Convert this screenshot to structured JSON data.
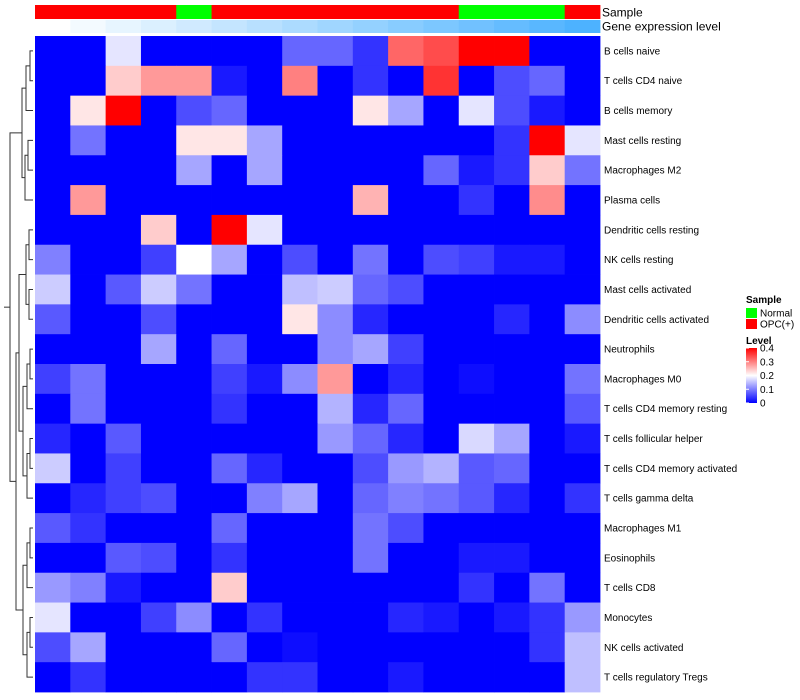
{
  "chart_data": {
    "type": "heatmap",
    "title": "",
    "annotation_tracks": [
      {
        "name": "Sample",
        "values": [
          "OPC(+)",
          "OPC(+)",
          "OPC(+)",
          "OPC(+)",
          "Normal",
          "OPC(+)",
          "OPC(+)",
          "OPC(+)",
          "OPC(+)",
          "OPC(+)",
          "OPC(+)",
          "OPC(+)",
          "Normal",
          "Normal",
          "Normal",
          "OPC(+)"
        ]
      },
      {
        "name": "Gene expression level",
        "values": [
          0.02,
          0.04,
          0.06,
          0.08,
          0.1,
          0.12,
          0.14,
          0.16,
          0.18,
          0.2,
          0.22,
          0.24,
          0.26,
          0.28,
          0.3,
          0.32
        ]
      }
    ],
    "rows": [
      "B cells naive",
      "T cells CD4 naive",
      "B cells memory",
      "Mast cells resting",
      "Macrophages M2",
      "Plasma cells",
      "Dendritic cells resting",
      "NK cells resting",
      "Mast cells activated",
      "Dendritic cells activated",
      "Neutrophils",
      "Macrophages M0",
      "T cells CD4 memory resting",
      "T cells follicular helper",
      "T cells CD4 memory activated",
      "T cells gamma delta",
      "Macrophages M1",
      "Eosinophils",
      "T cells CD8",
      "Monocytes",
      "NK cells activated",
      "T cells regulatory  Tregs"
    ],
    "values": [
      [
        0,
        0,
        0.18,
        0,
        0,
        0,
        0,
        0.08,
        0.08,
        0.04,
        0.32,
        0.34,
        0.4,
        0.4,
        0,
        0
      ],
      [
        0,
        0,
        0.24,
        0.28,
        0.28,
        0.02,
        0,
        0.3,
        0,
        0.04,
        0,
        0.36,
        0,
        0.06,
        0.08,
        0
      ],
      [
        0,
        0.22,
        0.4,
        0,
        0.06,
        0.08,
        0,
        0,
        0,
        0.22,
        0.13,
        0,
        0.18,
        0.06,
        0.02,
        0
      ],
      [
        0,
        0.09,
        0,
        0,
        0.22,
        0.22,
        0.13,
        0,
        0,
        0,
        0,
        0,
        0,
        0.04,
        0.4,
        0.18
      ],
      [
        0,
        0,
        0,
        0,
        0.13,
        0,
        0.13,
        0,
        0,
        0,
        0,
        0.08,
        0.02,
        0.04,
        0.24,
        0.09
      ],
      [
        0,
        0.28,
        0,
        0,
        0,
        0,
        0,
        0,
        0,
        0.26,
        0,
        0,
        0.04,
        0,
        0.29,
        0
      ],
      [
        0,
        0,
        0,
        0.24,
        0,
        0.4,
        0.18,
        0,
        0,
        0,
        0,
        0,
        0,
        0,
        0,
        0
      ],
      [
        0.1,
        0,
        0,
        0.05,
        0.2,
        0.13,
        0,
        0.06,
        0,
        0.09,
        0,
        0.06,
        0.05,
        0.02,
        0.02,
        0
      ],
      [
        0.16,
        0,
        0.07,
        0.16,
        0.09,
        0,
        0,
        0.15,
        0.16,
        0.08,
        0.06,
        0,
        0,
        0,
        0,
        0
      ],
      [
        0.07,
        0,
        0,
        0.06,
        0,
        0,
        0,
        0.22,
        0.11,
        0.03,
        0,
        0,
        0,
        0.03,
        0,
        0.11
      ],
      [
        0,
        0,
        0,
        0.13,
        0,
        0.08,
        0,
        0,
        0.11,
        0.13,
        0.05,
        0,
        0,
        0,
        0,
        0
      ],
      [
        0.05,
        0.09,
        0,
        0,
        0,
        0.05,
        0.02,
        0.11,
        0.28,
        0,
        0.03,
        0,
        0.01,
        0,
        0,
        0.09
      ],
      [
        0,
        0.09,
        0,
        0,
        0,
        0.04,
        0,
        0,
        0.14,
        0.03,
        0.08,
        0,
        0,
        0,
        0,
        0.07
      ],
      [
        0.03,
        0,
        0.07,
        0,
        0,
        0,
        0,
        0,
        0.12,
        0.08,
        0.03,
        0,
        0.17,
        0.13,
        0,
        0.02
      ],
      [
        0.16,
        0,
        0.05,
        0,
        0,
        0.08,
        0.03,
        0,
        0,
        0.06,
        0.12,
        0.14,
        0.07,
        0.08,
        0,
        0
      ],
      [
        0,
        0.03,
        0.05,
        0.06,
        0,
        0,
        0.1,
        0.13,
        0,
        0.08,
        0.1,
        0.09,
        0.07,
        0.03,
        0,
        0.04
      ],
      [
        0.07,
        0.04,
        0,
        0,
        0,
        0.08,
        0,
        0,
        0,
        0.09,
        0.06,
        0,
        0,
        0,
        0,
        0
      ],
      [
        0,
        0,
        0.07,
        0.06,
        0,
        0.04,
        0,
        0,
        0,
        0.09,
        0,
        0,
        0.02,
        0.02,
        0,
        0
      ],
      [
        0.12,
        0.1,
        0.02,
        0,
        0,
        0.24,
        0,
        0,
        0,
        0,
        0,
        0,
        0.04,
        0,
        0.09,
        0
      ],
      [
        0.18,
        0,
        0,
        0.05,
        0.11,
        0,
        0.04,
        0,
        0,
        0,
        0.03,
        0.02,
        0,
        0.02,
        0.04,
        0.12
      ],
      [
        0.06,
        0.13,
        0,
        0,
        0,
        0.08,
        0,
        0.01,
        0,
        0,
        0,
        0,
        0,
        0,
        0.04,
        0.15
      ],
      [
        0,
        0.04,
        0,
        0,
        0,
        0,
        0.04,
        0.04,
        0,
        0,
        0.02,
        0,
        0,
        0,
        0,
        0.15
      ]
    ],
    "legend_sample": {
      "title": "Sample",
      "entries": [
        {
          "label": "Normal",
          "color": "#00ff00"
        },
        {
          "label": "OPC(+)",
          "color": "#ff0000"
        }
      ]
    },
    "legend_level": {
      "title": "Level",
      "ticks": [
        0.4,
        0.3,
        0.2,
        0.1,
        0
      ],
      "range": [
        0,
        0.4
      ],
      "color_low": "#0000ff",
      "color_mid": "#ffffff",
      "color_high": "#ff0000",
      "midpoint": 0.2
    },
    "gene_level_colors": [
      "#ffffff",
      "#4db2ff"
    ]
  }
}
